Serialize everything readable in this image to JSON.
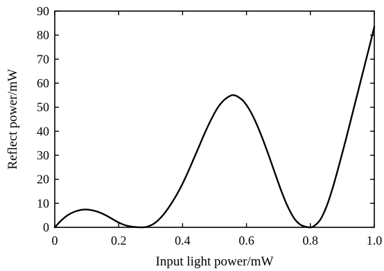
{
  "chart_data": {
    "type": "line",
    "title": "",
    "xlabel": "Input light power/mW",
    "ylabel": "Reflect power/mW",
    "xlim": [
      0,
      1.0
    ],
    "ylim": [
      0,
      90
    ],
    "grid": false,
    "xticks": [
      0,
      0.2,
      0.4,
      0.6,
      0.8,
      1.0
    ],
    "xtick_labels": [
      "0",
      "0.2",
      "0.4",
      "0.6",
      "0.8",
      "1.0"
    ],
    "yticks": [
      0,
      10,
      20,
      30,
      40,
      50,
      60,
      70,
      80,
      90
    ],
    "ytick_labels": [
      "0",
      "10",
      "20",
      "30",
      "40",
      "50",
      "60",
      "70",
      "80",
      "90"
    ],
    "series": [
      {
        "color": "#000000",
        "x": [
          0,
          0.02,
          0.04,
          0.06,
          0.08,
          0.1,
          0.12,
          0.14,
          0.16,
          0.18,
          0.2,
          0.22,
          0.24,
          0.26,
          0.275,
          0.29,
          0.31,
          0.33,
          0.35,
          0.37,
          0.39,
          0.41,
          0.43,
          0.45,
          0.47,
          0.49,
          0.51,
          0.53,
          0.55,
          0.56,
          0.57,
          0.59,
          0.61,
          0.63,
          0.65,
          0.67,
          0.69,
          0.71,
          0.73,
          0.75,
          0.77,
          0.79,
          0.8,
          0.81,
          0.83,
          0.85,
          0.87,
          0.89,
          0.91,
          0.93,
          0.95,
          0.97,
          0.99,
          1.0
        ],
        "y": [
          0,
          2.8,
          5.0,
          6.4,
          7.2,
          7.4,
          7.0,
          6.2,
          5.0,
          3.5,
          2.0,
          0.9,
          0.3,
          0.05,
          0,
          0.3,
          1.5,
          3.8,
          7.0,
          11.0,
          15.6,
          21.0,
          27.0,
          33.2,
          39.4,
          45.0,
          49.8,
          53.0,
          54.8,
          55.0,
          54.6,
          52.6,
          48.8,
          43.5,
          37.0,
          29.8,
          22.2,
          14.8,
          8.4,
          3.6,
          1.0,
          0.1,
          0,
          0.4,
          3.0,
          8.5,
          16.5,
          26.0,
          36.0,
          46.5,
          57.0,
          67.5,
          78.0,
          83.5
        ]
      }
    ]
  }
}
